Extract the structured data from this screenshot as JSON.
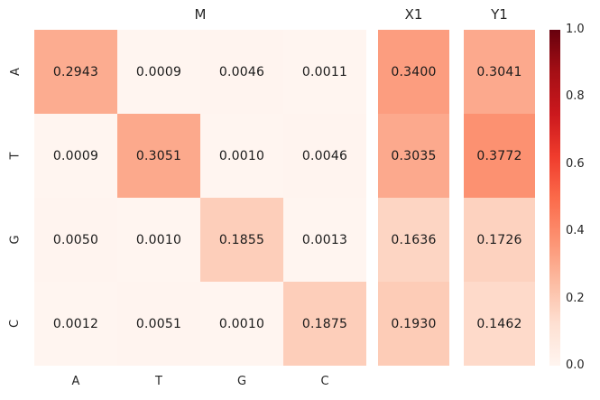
{
  "figure": {
    "background": "#ffffff",
    "text_color": "#262626",
    "annotation_color": "#1a1a1a"
  },
  "chart_data": {
    "type": "heatmap",
    "colormap": "Reds",
    "colormap_stops": [
      {
        "t": 0.0,
        "color": "#fff5f0"
      },
      {
        "t": 0.125,
        "color": "#fee0d2"
      },
      {
        "t": 0.25,
        "color": "#fcbba1"
      },
      {
        "t": 0.375,
        "color": "#fc9272"
      },
      {
        "t": 0.5,
        "color": "#fb6a4a"
      },
      {
        "t": 0.625,
        "color": "#ef3b2c"
      },
      {
        "t": 0.75,
        "color": "#cb181d"
      },
      {
        "t": 0.875,
        "color": "#a50f15"
      },
      {
        "t": 1.0,
        "color": "#67000d"
      }
    ],
    "vmin": 0.0,
    "vmax": 1.0,
    "value_decimals": 4,
    "row_labels": [
      "A",
      "T",
      "G",
      "C"
    ],
    "panels": [
      {
        "title": "M",
        "col_labels": [
          "A",
          "T",
          "G",
          "C"
        ],
        "values": [
          [
            0.2943,
            0.0009,
            0.0046,
            0.0011
          ],
          [
            0.0009,
            0.3051,
            0.001,
            0.0046
          ],
          [
            0.005,
            0.001,
            0.1855,
            0.0013
          ],
          [
            0.0012,
            0.0051,
            0.001,
            0.1875
          ]
        ]
      },
      {
        "title": "X1",
        "col_labels": [],
        "values": [
          [
            0.34
          ],
          [
            0.3035
          ],
          [
            0.1636
          ],
          [
            0.193
          ]
        ]
      },
      {
        "title": "Y1",
        "col_labels": [],
        "values": [
          [
            0.3041
          ],
          [
            0.3772
          ],
          [
            0.1726
          ],
          [
            0.1462
          ]
        ]
      }
    ],
    "colorbar": {
      "orientation": "vertical",
      "ticks": [
        {
          "label": "1.0",
          "value": 1.0
        },
        {
          "label": "0.8",
          "value": 0.8
        },
        {
          "label": "0.6",
          "value": 0.6
        },
        {
          "label": "0.4",
          "value": 0.4
        },
        {
          "label": "0.2",
          "value": 0.2
        },
        {
          "label": "0.0",
          "value": 0.0
        }
      ]
    }
  }
}
